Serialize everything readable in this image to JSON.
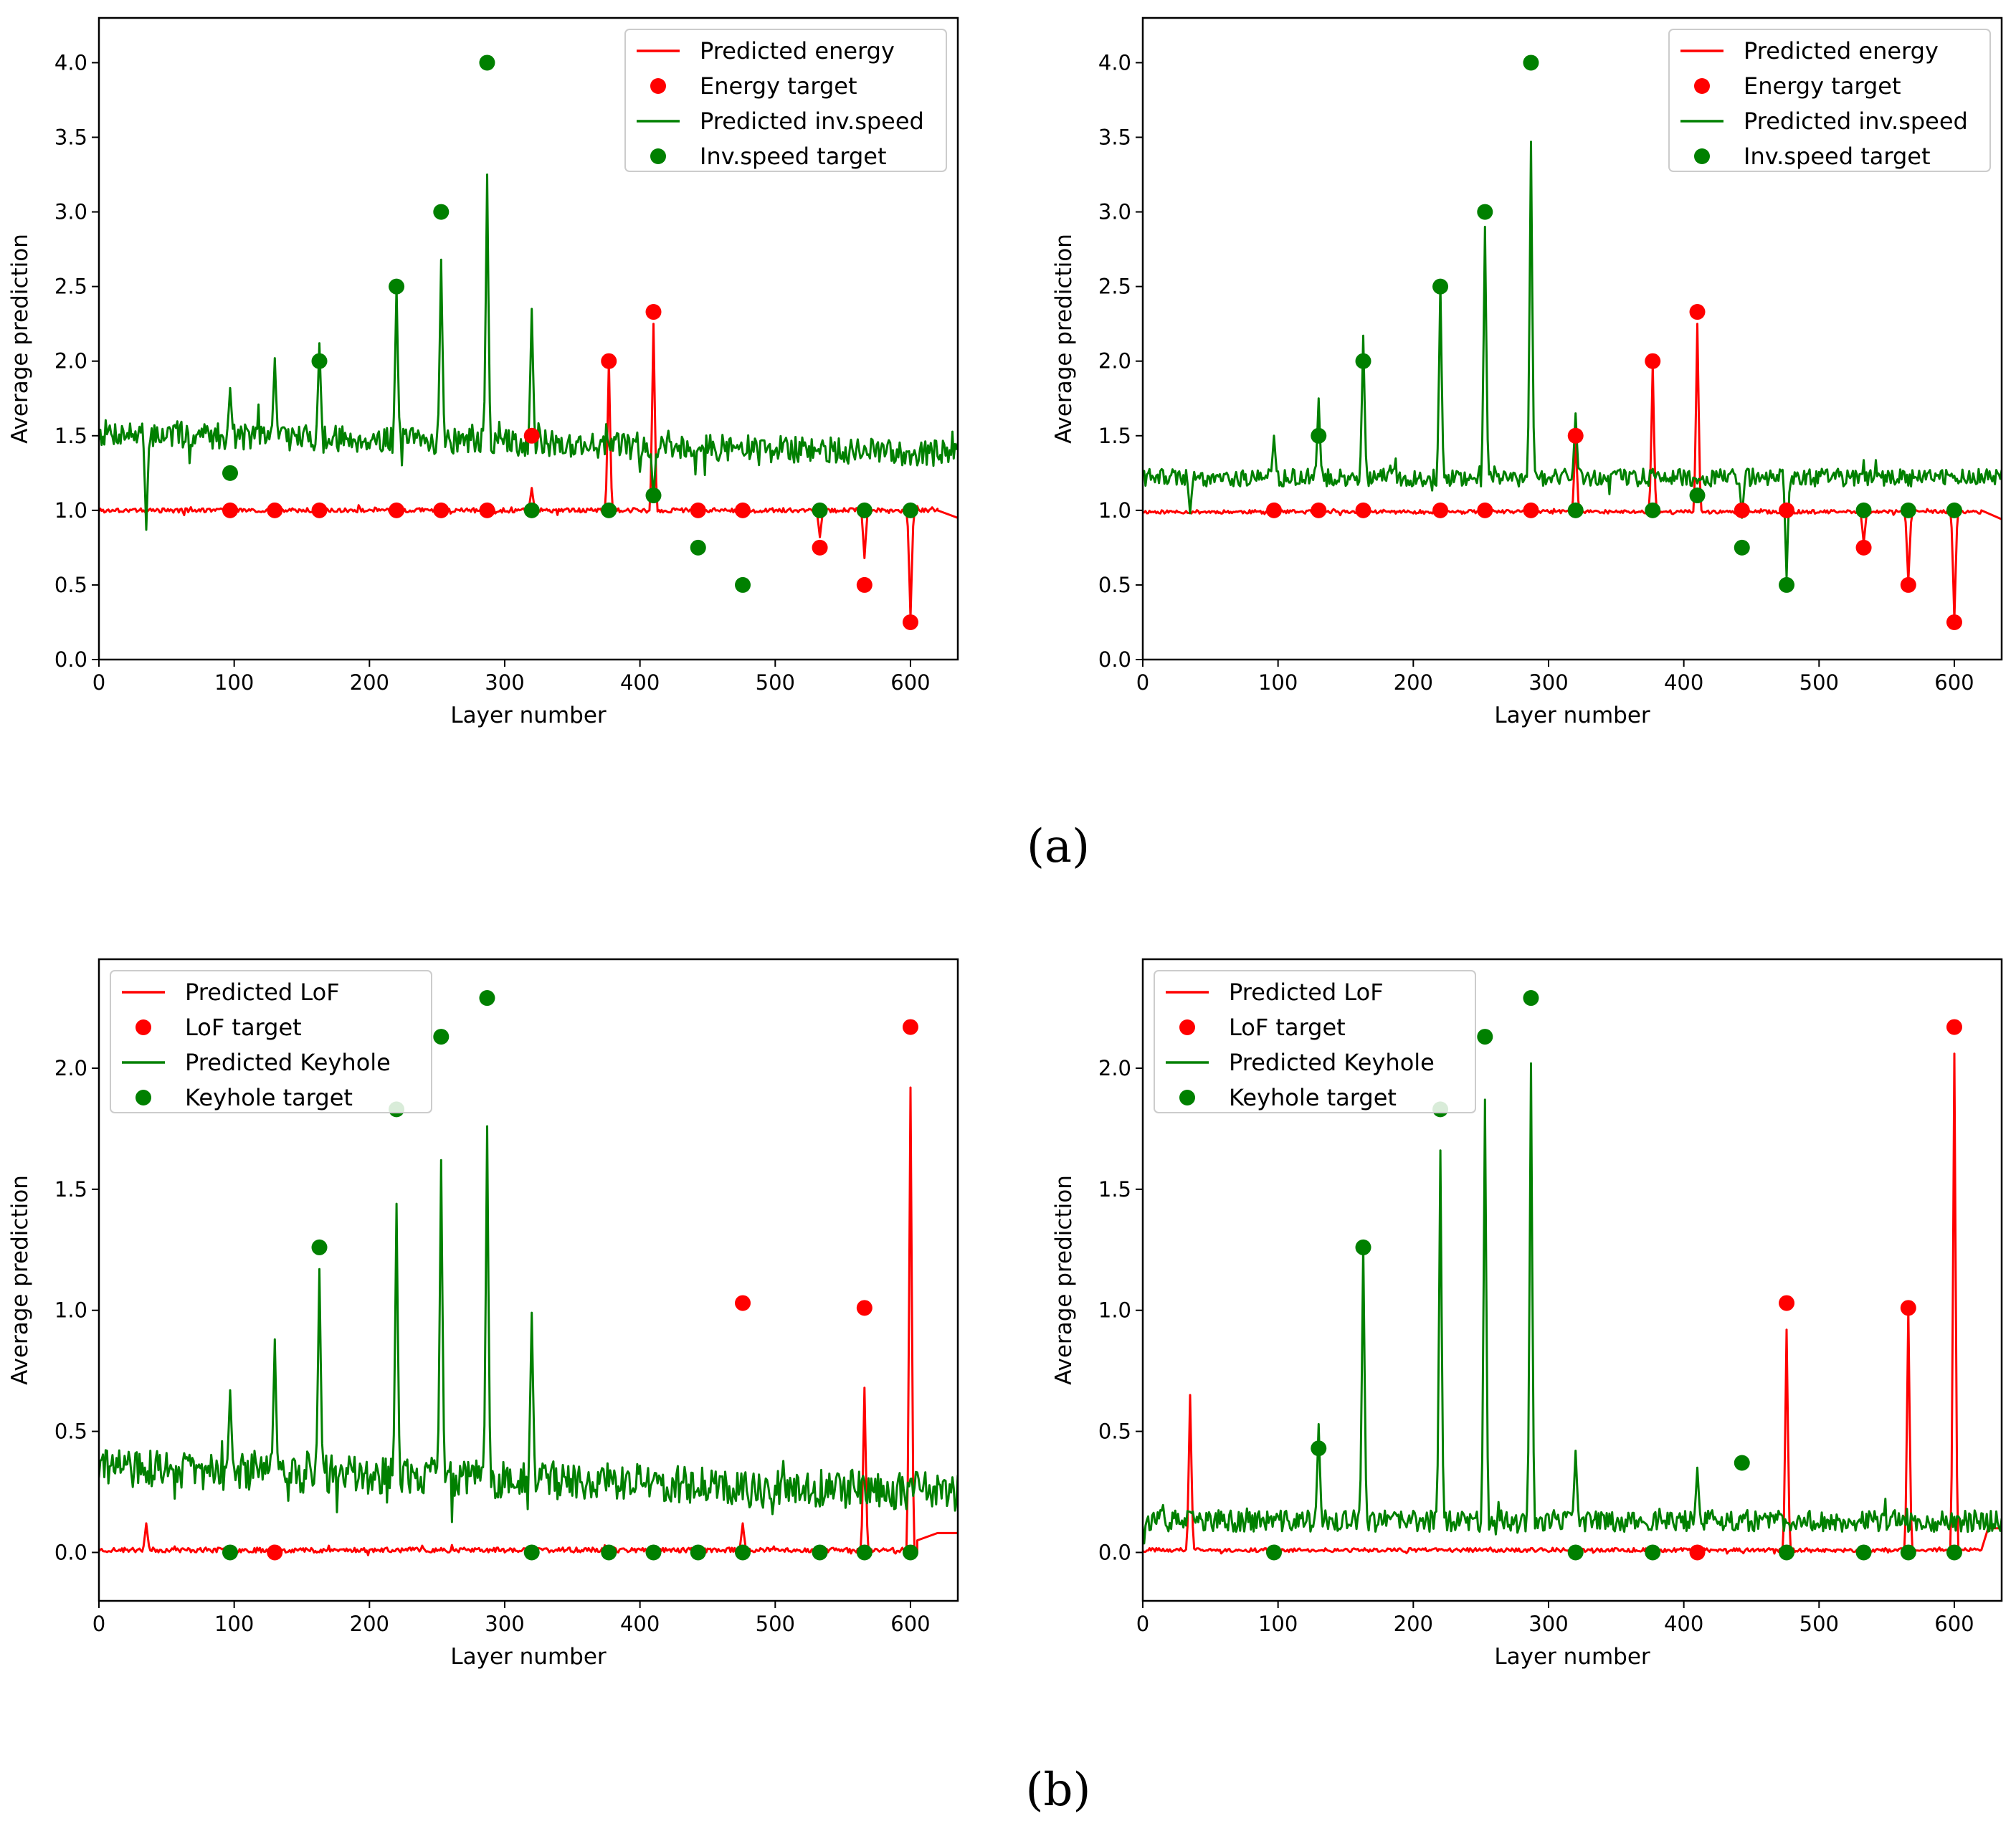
{
  "figure": {
    "captions": [
      "(a)",
      "(b)"
    ]
  },
  "colors": {
    "energy": "#ff0000",
    "speed": "#008000"
  },
  "chart_data": [
    {
      "type": "line",
      "panel": "a-left",
      "xlabel": "Layer number",
      "ylabel": "Average prediction",
      "xlim": [
        0,
        635
      ],
      "ylim": [
        0,
        4.3
      ],
      "xticks": [
        0,
        100,
        200,
        300,
        400,
        500,
        600
      ],
      "yticks": [
        0.0,
        0.5,
        1.0,
        1.5,
        2.0,
        2.5,
        3.0,
        3.5,
        4.0
      ],
      "ytick_labels": [
        "0.0",
        "0.5",
        "1.0",
        "1.5",
        "2.0",
        "2.5",
        "3.0",
        "3.5",
        "4.0"
      ],
      "legend_position": "top-right",
      "legend": [
        "Predicted energy",
        "Energy target",
        "Predicted inv.speed",
        "Inv.speed target"
      ],
      "series": [
        {
          "name": "Predicted energy",
          "kind": "line",
          "color": "red",
          "base": 1.0,
          "noise": 0.015,
          "seed": 3,
          "spikes": [
            [
              320,
              1.15
            ],
            [
              377,
              2.0
            ],
            [
              410,
              2.25
            ],
            [
              533,
              0.82
            ],
            [
              566,
              0.68
            ],
            [
              600,
              0.28
            ]
          ],
          "tail": [
            [
              620,
              1.0
            ],
            [
              635,
              0.95
            ]
          ]
        },
        {
          "name": "Energy target",
          "kind": "scatter",
          "color": "red",
          "x": [
            97,
            130,
            163,
            220,
            253,
            287,
            320,
            377,
            410,
            443,
            476,
            533,
            566,
            600
          ],
          "y": [
            1.0,
            1.0,
            1.0,
            1.0,
            1.0,
            1.0,
            1.5,
            2.0,
            2.33,
            1.0,
            1.0,
            0.75,
            0.5,
            0.25
          ]
        },
        {
          "name": "Predicted inv.speed",
          "kind": "line",
          "color": "green",
          "base": 1.52,
          "end": 1.38,
          "noise": 0.09,
          "seed": 7,
          "spikes": [
            [
              35,
              0.87
            ],
            [
              97,
              1.82
            ],
            [
              130,
              2.02
            ],
            [
              163,
              2.12
            ],
            [
              220,
              2.5
            ],
            [
              253,
              2.68
            ],
            [
              287,
              3.25
            ],
            [
              320,
              2.35
            ],
            [
              410,
              1.07
            ]
          ]
        },
        {
          "name": "Inv.speed target",
          "kind": "scatter",
          "color": "green",
          "x": [
            97,
            163,
            220,
            253,
            287,
            320,
            377,
            410,
            443,
            476,
            533,
            566,
            600
          ],
          "y": [
            1.25,
            2.0,
            2.5,
            3.0,
            4.0,
            1.0,
            1.0,
            1.1,
            0.75,
            0.5,
            1.0,
            1.0,
            1.0
          ]
        }
      ]
    },
    {
      "type": "line",
      "panel": "a-right",
      "xlabel": "Layer number",
      "ylabel": "Average prediction",
      "xlim": [
        0,
        635
      ],
      "ylim": [
        0,
        4.3
      ],
      "xticks": [
        0,
        100,
        200,
        300,
        400,
        500,
        600
      ],
      "yticks": [
        0.0,
        0.5,
        1.0,
        1.5,
        2.0,
        2.5,
        3.0,
        3.5,
        4.0
      ],
      "ytick_labels": [
        "0.0",
        "0.5",
        "1.0",
        "1.5",
        "2.0",
        "2.5",
        "3.0",
        "3.5",
        "4.0"
      ],
      "legend_position": "top-right",
      "legend": [
        "Predicted energy",
        "Energy target",
        "Predicted inv.speed",
        "Inv.speed target"
      ],
      "series": [
        {
          "name": "Predicted energy",
          "kind": "line",
          "color": "red",
          "base": 0.99,
          "noise": 0.012,
          "seed": 11,
          "spikes": [
            [
              320,
              1.5
            ],
            [
              377,
              1.98
            ],
            [
              410,
              2.25
            ],
            [
              533,
              0.78
            ],
            [
              566,
              0.52
            ],
            [
              600,
              0.27
            ]
          ],
          "tail": [
            [
              620,
              1.0
            ],
            [
              635,
              0.94
            ]
          ]
        },
        {
          "name": "Energy target",
          "kind": "scatter",
          "color": "red",
          "x": [
            97,
            130,
            163,
            220,
            253,
            287,
            320,
            377,
            410,
            443,
            476,
            533,
            566,
            600
          ],
          "y": [
            1.0,
            1.0,
            1.0,
            1.0,
            1.0,
            1.0,
            1.5,
            2.0,
            2.33,
            1.0,
            1.0,
            0.75,
            0.5,
            0.25
          ]
        },
        {
          "name": "Predicted inv.speed",
          "kind": "line",
          "color": "green",
          "base": 1.22,
          "noise": 0.06,
          "seed": 19,
          "spikes": [
            [
              35,
              0.98
            ],
            [
              97,
              1.5
            ],
            [
              130,
              1.75
            ],
            [
              163,
              2.17
            ],
            [
              220,
              2.52
            ],
            [
              253,
              2.9
            ],
            [
              287,
              3.47
            ],
            [
              320,
              1.65
            ],
            [
              443,
              0.95
            ],
            [
              476,
              0.55
            ]
          ]
        },
        {
          "name": "Inv.speed target",
          "kind": "scatter",
          "color": "green",
          "x": [
            130,
            163,
            220,
            253,
            287,
            320,
            377,
            410,
            443,
            476,
            533,
            566,
            600
          ],
          "y": [
            1.5,
            2.0,
            2.5,
            3.0,
            4.0,
            1.0,
            1.0,
            1.1,
            0.75,
            0.5,
            1.0,
            1.0,
            1.0
          ]
        }
      ]
    },
    {
      "type": "line",
      "panel": "b-left",
      "xlabel": "Layer number",
      "ylabel": "Average prediction",
      "xlim": [
        0,
        635
      ],
      "ylim": [
        -0.2,
        2.45
      ],
      "xticks": [
        0,
        100,
        200,
        300,
        400,
        500,
        600
      ],
      "yticks": [
        0.0,
        0.5,
        1.0,
        1.5,
        2.0
      ],
      "ytick_labels": [
        "0.0",
        "0.5",
        "1.0",
        "1.5",
        "2.0"
      ],
      "legend_position": "top-left",
      "legend": [
        "Predicted LoF",
        "LoF target",
        "Predicted Keyhole",
        "Keyhole target"
      ],
      "series": [
        {
          "name": "Predicted LoF",
          "kind": "line",
          "color": "red",
          "base": 0.01,
          "noise": 0.01,
          "seed": 23,
          "spikes": [
            [
              35,
              0.12
            ],
            [
              476,
              0.12
            ],
            [
              566,
              0.68
            ],
            [
              600,
              1.92
            ]
          ],
          "tail": [
            [
              605,
              0.05
            ],
            [
              620,
              0.08
            ],
            [
              635,
              0.08
            ]
          ]
        },
        {
          "name": "LoF target",
          "kind": "scatter",
          "color": "red",
          "x": [
            130,
            476,
            566,
            600
          ],
          "y": [
            0.0,
            1.03,
            1.01,
            2.17
          ]
        },
        {
          "name": "Predicted Keyhole",
          "kind": "line",
          "color": "green",
          "base": 0.35,
          "end": 0.25,
          "noise": 0.08,
          "seed": 29,
          "spikes": [
            [
              97,
              0.67
            ],
            [
              130,
              0.88
            ],
            [
              163,
              1.17
            ],
            [
              220,
              1.44
            ],
            [
              253,
              1.62
            ],
            [
              287,
              1.76
            ],
            [
              320,
              0.99
            ]
          ]
        },
        {
          "name": "Keyhole target",
          "kind": "scatter",
          "color": "green",
          "x": [
            97,
            163,
            220,
            253,
            287,
            320,
            377,
            410,
            443,
            476,
            533,
            566,
            600
          ],
          "y": [
            0.0,
            1.26,
            1.83,
            2.13,
            2.29,
            0.0,
            0.0,
            0.0,
            0.0,
            0.0,
            0.0,
            0.0,
            0.0
          ]
        }
      ]
    },
    {
      "type": "line",
      "panel": "b-right",
      "xlabel": "Layer number",
      "ylabel": "Average prediction",
      "xlim": [
        0,
        635
      ],
      "ylim": [
        -0.2,
        2.45
      ],
      "xticks": [
        0,
        100,
        200,
        300,
        400,
        500,
        600
      ],
      "yticks": [
        0.0,
        0.5,
        1.0,
        1.5,
        2.0
      ],
      "ytick_labels": [
        "0.0",
        "0.5",
        "1.0",
        "1.5",
        "2.0"
      ],
      "legend_position": "top-left",
      "legend": [
        "Predicted LoF",
        "LoF target",
        "Predicted Keyhole",
        "Keyhole target"
      ],
      "series": [
        {
          "name": "Predicted LoF",
          "kind": "line",
          "color": "red",
          "base": 0.01,
          "noise": 0.008,
          "seed": 31,
          "spikes": [
            [
              35,
              0.65
            ],
            [
              476,
              0.92
            ],
            [
              566,
              1.0
            ],
            [
              600,
              2.06
            ]
          ],
          "tail": [
            [
              620,
              0.01
            ],
            [
              625,
              0.1
            ],
            [
              635,
              0.1
            ]
          ]
        },
        {
          "name": "LoF target",
          "kind": "scatter",
          "color": "red",
          "x": [
            410,
            476,
            566,
            600
          ],
          "y": [
            0.0,
            1.03,
            1.01,
            2.17
          ]
        },
        {
          "name": "Predicted Keyhole",
          "kind": "line",
          "color": "green",
          "base": 0.13,
          "noise": 0.045,
          "seed": 37,
          "spikes": [
            [
              130,
              0.53
            ],
            [
              163,
              1.27
            ],
            [
              220,
              1.66
            ],
            [
              253,
              1.87
            ],
            [
              287,
              2.02
            ],
            [
              320,
              0.42
            ],
            [
              410,
              0.35
            ]
          ]
        },
        {
          "name": "Keyhole target",
          "kind": "scatter",
          "color": "green",
          "x": [
            97,
            130,
            163,
            220,
            253,
            287,
            320,
            377,
            443,
            476,
            533,
            566,
            600
          ],
          "y": [
            0.0,
            0.43,
            1.26,
            1.83,
            2.13,
            2.29,
            0.0,
            0.0,
            0.37,
            0.0,
            0.0,
            0.0,
            0.0
          ]
        }
      ]
    }
  ]
}
